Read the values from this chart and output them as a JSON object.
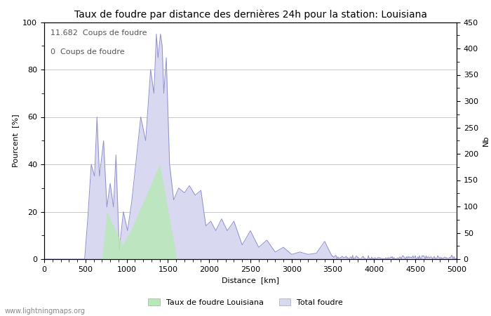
{
  "title": "Taux de foudre par distance des dernières 24h pour la station: Louisiana",
  "xlabel": "Distance  [km]",
  "ylabel_left": "Pourcent  [%]",
  "ylabel_right": "Nb",
  "annotation_line1": "11.682  Coups de foudre",
  "annotation_line2": "0  Coups de foudre",
  "legend_green": "Taux de foudre Louisiana",
  "legend_blue": "Total foudre",
  "watermark": "www.lightningmaps.org",
  "xlim": [
    0,
    5000
  ],
  "ylim_left": [
    0,
    100
  ],
  "ylim_right": [
    0,
    450
  ],
  "xticks": [
    0,
    500,
    1000,
    1500,
    2000,
    2500,
    3000,
    3500,
    4000,
    4500,
    5000
  ],
  "yticks_left": [
    0,
    20,
    40,
    60,
    80,
    100
  ],
  "yticks_right": [
    0,
    50,
    100,
    150,
    200,
    250,
    300,
    350,
    400,
    450
  ],
  "bg_color": "#ffffff",
  "grid_color": "#c8c8c8",
  "line_color": "#9090cc",
  "fill_blue_color": "#d8d8f0",
  "fill_green_color": "#b8e8b8",
  "title_fontsize": 10,
  "axis_fontsize": 8,
  "tick_fontsize": 8,
  "annotation_fontsize": 8
}
